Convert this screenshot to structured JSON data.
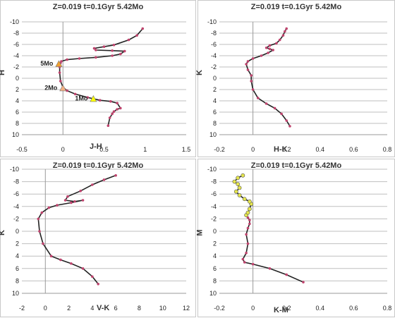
{
  "chart_data": [
    {
      "type": "line",
      "title": "Z=0.019  t=0.1Gyr  5.42Mo",
      "xlabel": "J-H",
      "ylabel": "H",
      "xlim": [
        -0.5,
        1.5
      ],
      "ylim": [
        10,
        -10
      ],
      "xticks": [
        "-0.5",
        "0",
        "0.5",
        "1",
        "1.5"
      ],
      "xtick_values": [
        -0.5,
        0,
        0.5,
        1,
        1.5
      ],
      "yticks": [
        "-10",
        "-8",
        "-6",
        "-4",
        "-2",
        "0",
        "2",
        "4",
        "6",
        "8",
        "10"
      ],
      "ytick_values": [
        -10,
        -8,
        -6,
        -4,
        -2,
        0,
        2,
        4,
        6,
        8,
        10
      ],
      "grid": true,
      "series": [
        {
          "color": "#c0446e",
          "x": [
            0.55,
            0.57,
            0.6,
            0.62,
            0.66,
            0.7,
            0.66,
            0.58,
            0.45,
            0.3,
            0.15,
            0.05,
            0.0,
            -0.03,
            -0.04,
            -0.04,
            -0.03,
            -0.02,
            0.05,
            0.2,
            0.4,
            0.6,
            0.7,
            0.75,
            0.6,
            0.4,
            0.38,
            0.5,
            0.62,
            0.8,
            0.9,
            0.97
          ],
          "y": [
            8.4,
            7.0,
            6.3,
            5.9,
            5.5,
            5.3,
            4.4,
            4.1,
            3.9,
            3.4,
            2.8,
            2.2,
            1.6,
            0.5,
            -1.0,
            -2.0,
            -2.7,
            -3.0,
            -3.3,
            -3.5,
            -3.7,
            -4.0,
            -4.3,
            -4.8,
            -4.9,
            -5.0,
            -5.3,
            -5.6,
            -5.9,
            -6.8,
            -7.6,
            -8.8
          ]
        }
      ],
      "markers": [
        {
          "label": "5Mo",
          "x": -0.05,
          "y": -2.5,
          "color": "#f0a030"
        },
        {
          "label": "2Mo",
          "x": 0.0,
          "y": 1.8,
          "color": "#f4b183"
        },
        {
          "label": "1Mo",
          "x": 0.37,
          "y": 3.7,
          "color": "#ffff00"
        }
      ]
    },
    {
      "type": "line",
      "title": "Z=0.019  t=0.1Gyr  5.42Mo",
      "xlabel": "H-K",
      "ylabel": "K",
      "xlim": [
        -0.2,
        0.8
      ],
      "ylim": [
        10,
        -10
      ],
      "xticks": [
        "-0.2",
        "0",
        "0.2",
        "0.4",
        "0.6",
        "0.8"
      ],
      "xtick_values": [
        -0.2,
        0,
        0.2,
        0.4,
        0.6,
        0.8
      ],
      "yticks": [
        "-10",
        "-8",
        "-6",
        "-4",
        "-2",
        "0",
        "2",
        "4",
        "6",
        "8",
        "10"
      ],
      "ytick_values": [
        -10,
        -8,
        -6,
        -4,
        -2,
        0,
        2,
        4,
        6,
        8,
        10
      ],
      "grid": true,
      "series": [
        {
          "color": "#c0446e",
          "x": [
            0.22,
            0.2,
            0.17,
            0.13,
            0.08,
            0.03,
            0.0,
            -0.01,
            -0.01,
            -0.03,
            -0.04,
            -0.03,
            0.0,
            0.05,
            0.09,
            0.12,
            0.1,
            0.08,
            0.1,
            0.14,
            0.16,
            0.18,
            0.19,
            0.2
          ],
          "y": [
            8.5,
            7.5,
            6.3,
            5.3,
            4.5,
            3.5,
            2.0,
            0.5,
            -0.5,
            -1.5,
            -2.5,
            -3.0,
            -3.5,
            -4.0,
            -4.5,
            -5.0,
            -5.2,
            -5.4,
            -5.8,
            -6.2,
            -6.8,
            -7.6,
            -8.3,
            -8.8
          ]
        }
      ],
      "markers": []
    },
    {
      "type": "line",
      "title": "Z=0.019  t=0.1Gyr  5.42Mo",
      "xlabel": "V-K",
      "ylabel": "K",
      "xlim": [
        -2,
        12
      ],
      "ylim": [
        10,
        -10
      ],
      "xticks": [
        "-2",
        "0",
        "2",
        "4",
        "6",
        "8",
        "10",
        "12"
      ],
      "xtick_values": [
        -2,
        0,
        2,
        4,
        6,
        8,
        10,
        12
      ],
      "yticks": [
        "-10",
        "-8",
        "-6",
        "-4",
        "-2",
        "0",
        "2",
        "4",
        "6",
        "8",
        "10"
      ],
      "ytick_values": [
        -10,
        -8,
        -6,
        -4,
        -2,
        0,
        2,
        4,
        6,
        8,
        10
      ],
      "grid": true,
      "series": [
        {
          "color": "#c0446e",
          "x": [
            4.5,
            4.0,
            3.2,
            2.2,
            1.3,
            0.5,
            -0.2,
            -0.5,
            -0.6,
            -0.3,
            0.3,
            1.0,
            2.2,
            3.2,
            2.5,
            1.7,
            1.9,
            3.0,
            4.0,
            5.0,
            6.0
          ],
          "y": [
            8.5,
            7.3,
            6.0,
            5.2,
            4.6,
            4.0,
            2.0,
            0.0,
            -2.0,
            -3.0,
            -3.8,
            -4.2,
            -4.6,
            -5.0,
            -4.8,
            -5.0,
            -5.6,
            -6.5,
            -7.5,
            -8.3,
            -9.0
          ]
        }
      ],
      "markers": []
    },
    {
      "type": "line",
      "title": "Z=0.019  t=0.1Gyr  5.42Mo",
      "xlabel": "K-M",
      "ylabel": "M",
      "xlim": [
        -0.2,
        0.8
      ],
      "ylim": [
        10,
        -10
      ],
      "xticks": [
        "-0.2",
        "0",
        "0.2",
        "0.4",
        "0.6",
        "0.8"
      ],
      "xtick_values": [
        -0.2,
        0,
        0.2,
        0.4,
        0.6,
        0.8
      ],
      "yticks": [
        "-10",
        "-8",
        "-6",
        "-4",
        "-2",
        "0",
        "2",
        "4",
        "6",
        "8",
        "10"
      ],
      "ytick_values": [
        -10,
        -8,
        -6,
        -4,
        -2,
        0,
        2,
        4,
        6,
        8,
        10
      ],
      "grid": true,
      "series": [
        {
          "color": "#c0446e",
          "x": [
            0.3,
            0.2,
            0.1,
            0.0,
            -0.05,
            -0.06,
            -0.04,
            -0.03,
            -0.04,
            -0.03,
            -0.02,
            -0.02,
            -0.03,
            -0.04
          ],
          "y": [
            8.2,
            7.0,
            6.0,
            5.3,
            5.0,
            4.5,
            3.5,
            2.0,
            0.5,
            -0.5,
            -1.2,
            -1.8,
            -2.2,
            -2.6
          ]
        },
        {
          "color": "#e6e64d",
          "x": [
            -0.04,
            -0.03,
            -0.02,
            -0.01,
            -0.02,
            -0.05,
            -0.08,
            -0.1,
            -0.08,
            -0.09,
            -0.11,
            -0.09,
            -0.06
          ],
          "y": [
            -2.6,
            -3.0,
            -3.6,
            -4.4,
            -4.8,
            -5.2,
            -5.8,
            -6.4,
            -7.0,
            -7.6,
            -8.0,
            -8.6,
            -9.0
          ]
        }
      ],
      "markers": []
    }
  ]
}
